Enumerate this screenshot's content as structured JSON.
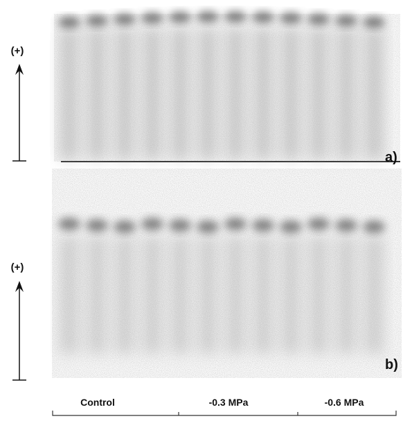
{
  "panels": [
    {
      "polarity": "(+)",
      "label": "a)"
    },
    {
      "polarity": "(+)",
      "label": "b)"
    }
  ],
  "groups": [
    "Control",
    "-0.3 MPa",
    "-0.6 MPa"
  ]
}
